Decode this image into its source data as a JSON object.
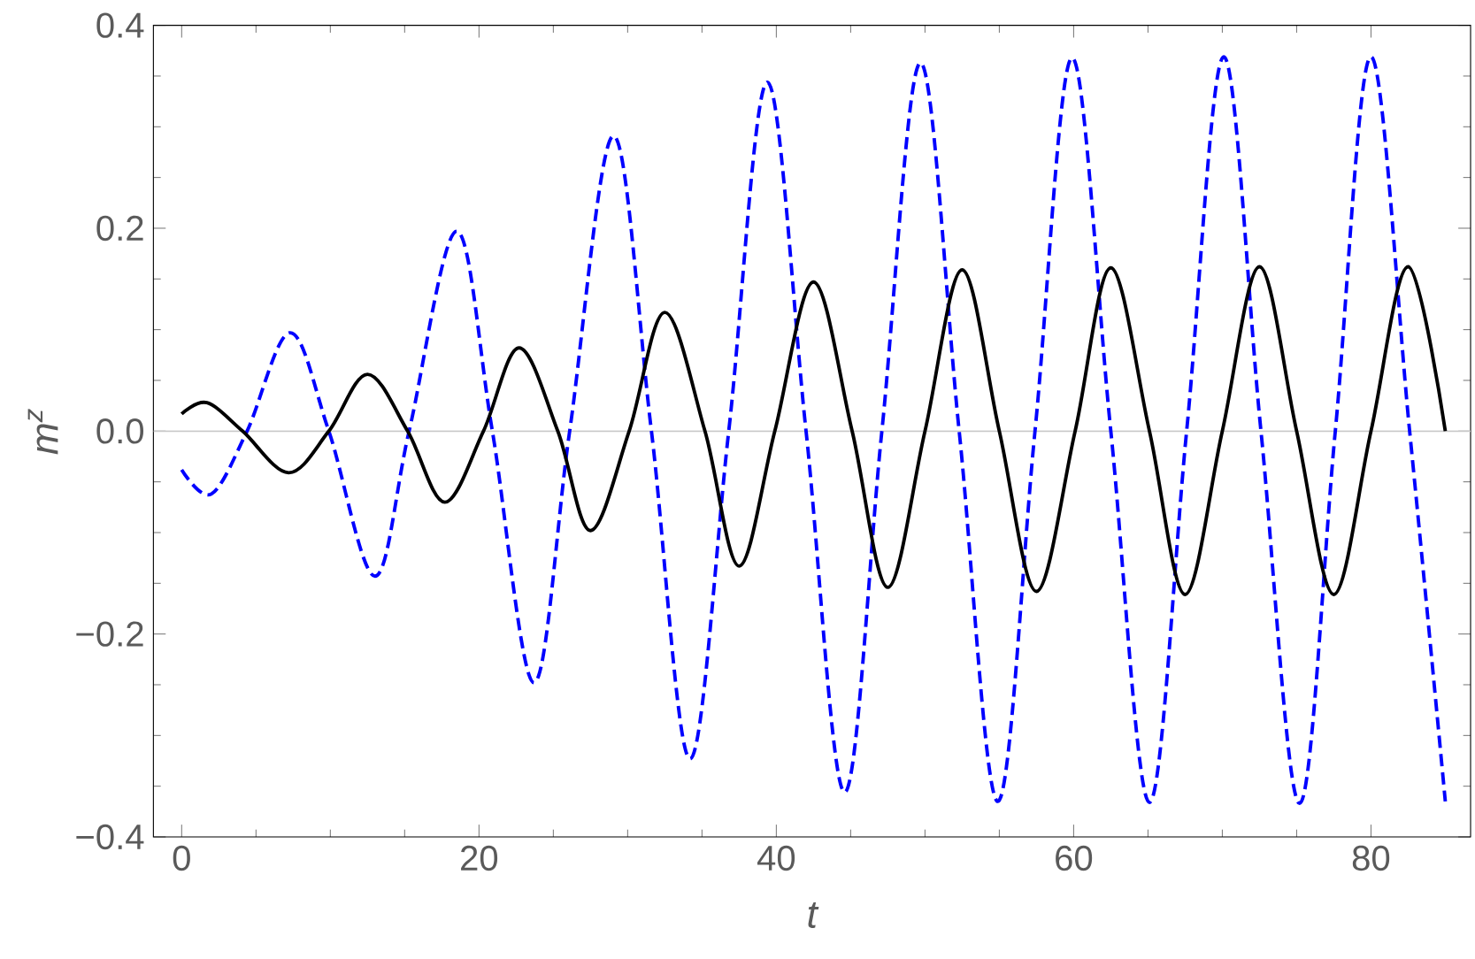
{
  "chart_data": {
    "type": "line",
    "xlabel": "t",
    "ylabel": "m$^{z}$",
    "xlim": [
      -1.9,
      86.7
    ],
    "ylim": [
      -0.4,
      0.4
    ],
    "xticks": [
      0,
      20,
      40,
      60,
      80
    ],
    "yticks": [
      {
        "value": -0.4,
        "label": "−0.4"
      },
      {
        "value": -0.2,
        "label": "−0.2"
      },
      {
        "value": 0,
        "label": "0.0"
      },
      {
        "value": 0.2,
        "label": "0.2"
      },
      {
        "value": 0.4,
        "label": "0.4"
      }
    ],
    "ref_lines": [
      {
        "axis": "y",
        "value": 0,
        "color": "#c8c8c8"
      }
    ],
    "series": [
      {
        "color": "#0000ff",
        "line_style": "dashed",
        "x": [
          0,
          2.0,
          4.4,
          7.3,
          9.9,
          13.0,
          15.3,
          18.5,
          20.9,
          23.7,
          26.1,
          29.05,
          31.6,
          34.2,
          36.8,
          39.4,
          42.0,
          44.6,
          47.1,
          49.7,
          52.3,
          54.9,
          57.4,
          59.9,
          62.5,
          65.1,
          67.6,
          70.1,
          72.6,
          75.2,
          77.6,
          80.0,
          82.6,
          85.0
        ],
        "values": [
          -0.038,
          -0.062,
          0,
          0.097,
          0,
          -0.143,
          0,
          0.197,
          0,
          -0.248,
          0,
          0.291,
          0,
          -0.323,
          0,
          0.344,
          0,
          -0.356,
          0,
          0.363,
          0,
          -0.365,
          0,
          0.368,
          0,
          -0.366,
          0,
          0.369,
          0,
          -0.367,
          0,
          0.369,
          0,
          -0.365
        ]
      },
      {
        "color": "#000000",
        "line_style": "solid",
        "x": [
          0,
          1.7,
          4.1,
          7.2,
          9.9,
          12.5,
          15.2,
          17.7,
          20.3,
          22.7,
          25.3,
          27.5,
          30.1,
          32.5,
          35.2,
          37.5,
          39.9,
          42.5,
          45.1,
          47.5,
          50.0,
          52.5,
          55.0,
          57.5,
          60.1,
          62.5,
          65.1,
          67.5,
          70.0,
          72.5,
          75.0,
          77.5,
          80.0,
          82.5,
          85.0
        ],
        "values": [
          0.017,
          0.028,
          0,
          -0.041,
          0,
          0.056,
          0,
          -0.07,
          0,
          0.082,
          0,
          -0.098,
          0,
          0.117,
          0,
          -0.133,
          0,
          0.147,
          0,
          -0.154,
          0,
          0.159,
          0,
          -0.158,
          0,
          0.161,
          0,
          -0.161,
          0,
          0.162,
          0,
          -0.161,
          0,
          0.162,
          0.0
        ]
      }
    ]
  }
}
